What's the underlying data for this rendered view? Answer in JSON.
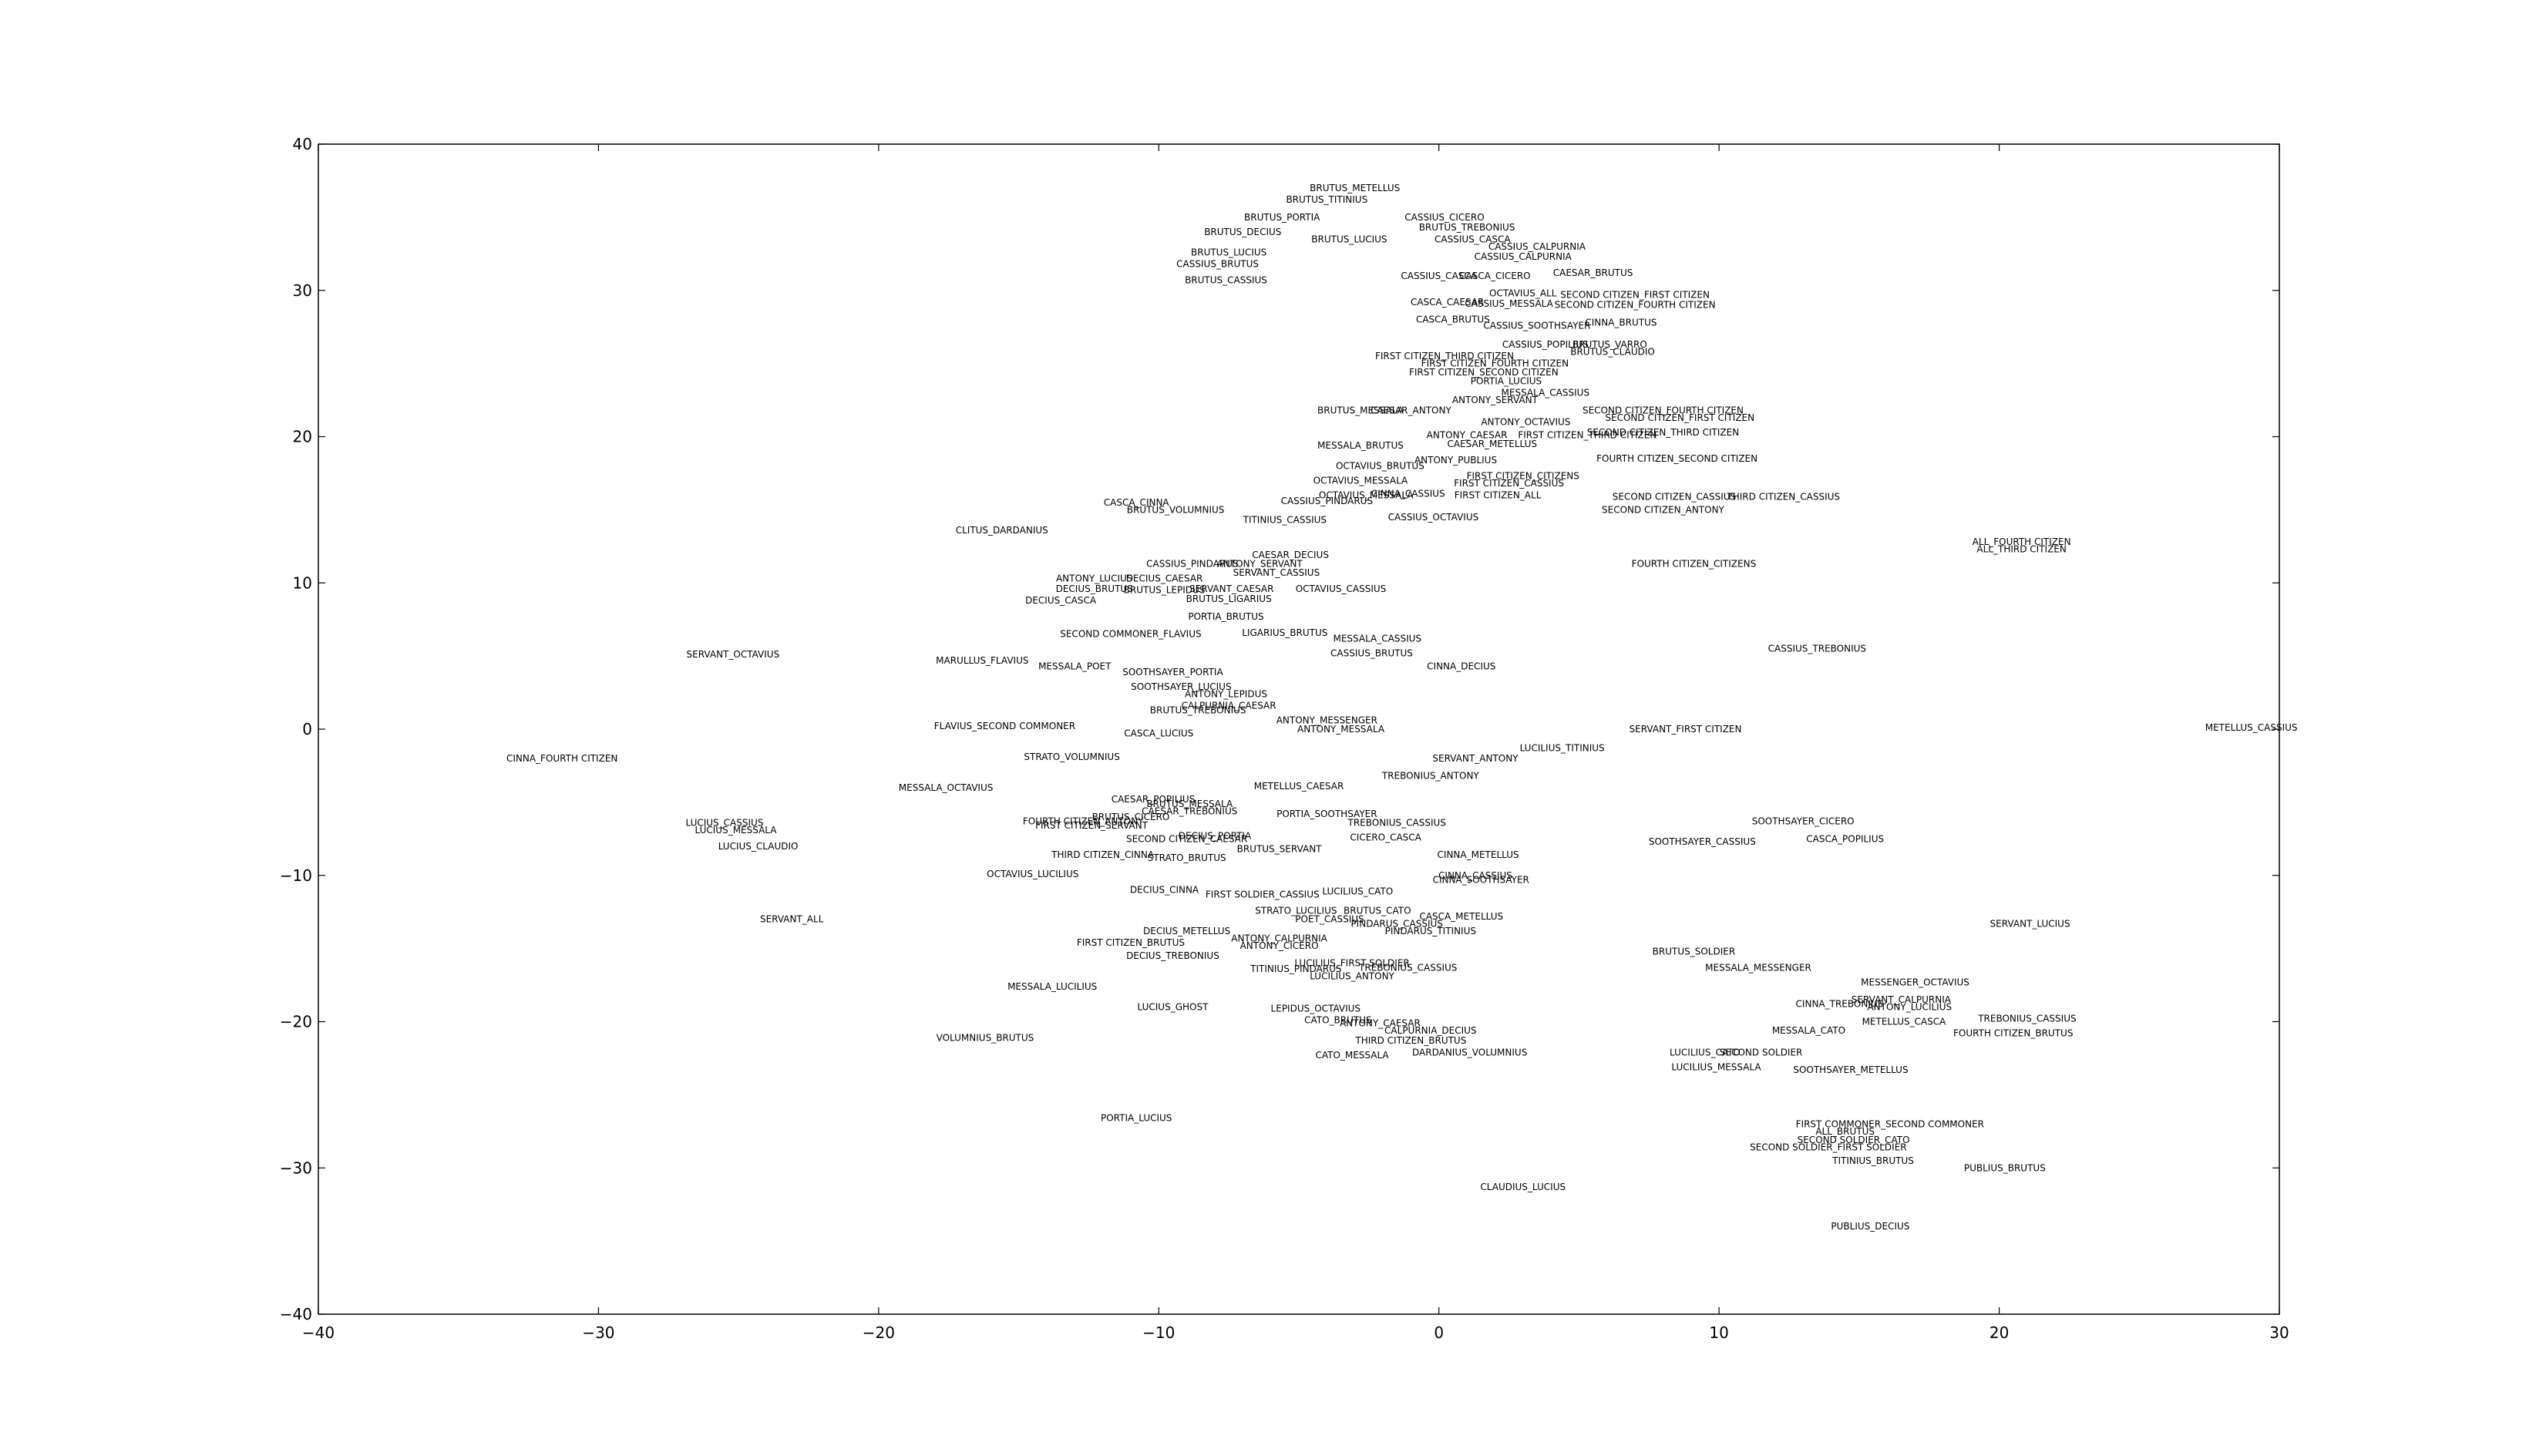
{
  "chart_data": {
    "type": "scatter",
    "title": "",
    "xlabel": "",
    "ylabel": "",
    "xlim": [
      -40,
      30
    ],
    "ylim": [
      -40,
      40
    ],
    "xticks": [
      -40,
      -30,
      -20,
      -10,
      0,
      10,
      20,
      30
    ],
    "yticks": [
      -40,
      -30,
      -20,
      -10,
      0,
      10,
      20,
      30,
      40
    ],
    "xtick_labels": [
      "−40",
      "−30",
      "−20",
      "−10",
      "0",
      "10",
      "20",
      "30"
    ],
    "ytick_labels": [
      "−40",
      "−30",
      "−20",
      "−10",
      "0",
      "10",
      "20",
      "30",
      "40"
    ],
    "grid": false,
    "points": [
      {
        "label": "BRUTUS_METELLUS",
        "x": -3.0,
        "y": 37.0
      },
      {
        "label": "BRUTUS_TITINIUS",
        "x": -4.0,
        "y": 36.2
      },
      {
        "label": "BRUTUS_PORTIA",
        "x": -5.6,
        "y": 35.0
      },
      {
        "label": "BRUTUS_DECIUS",
        "x": -7.0,
        "y": 34.0
      },
      {
        "label": "BRUTUS_LUCIUS",
        "x": -3.2,
        "y": 33.5
      },
      {
        "label": "BRUTUS_TREBONIUS",
        "x": 1.0,
        "y": 34.3
      },
      {
        "label": "CASSIUS_CICERO",
        "x": 0.2,
        "y": 35.0
      },
      {
        "label": "CASSIUS_CASCA",
        "x": 1.2,
        "y": 33.5
      },
      {
        "label": "CASSIUS_CALPURNIA",
        "x": 3.5,
        "y": 33.0
      },
      {
        "label": "BRUTUS_LUCIUS",
        "x": -7.5,
        "y": 32.6
      },
      {
        "label": "CASSIUS_BRUTUS",
        "x": -7.9,
        "y": 31.8
      },
      {
        "label": "CASSIUS_CALPURNIA",
        "x": 3.0,
        "y": 32.3
      },
      {
        "label": "BRUTUS_CASSIUS",
        "x": -7.6,
        "y": 30.7
      },
      {
        "label": "CAESAR_BRUTUS",
        "x": 5.5,
        "y": 31.2
      },
      {
        "label": "CASSIUS_CASCA",
        "x": 0.0,
        "y": 31.0
      },
      {
        "label": "CASCA_CICERO",
        "x": 2.0,
        "y": 31.0
      },
      {
        "label": "OCTAVIUS_ALL",
        "x": 3.0,
        "y": 29.8
      },
      {
        "label": "SECOND CITIZEN_FIRST CITIZEN",
        "x": 7.0,
        "y": 29.7
      },
      {
        "label": "CASCA_CAESAR",
        "x": 0.3,
        "y": 29.2
      },
      {
        "label": "CASSIUS_MESSALA",
        "x": 2.5,
        "y": 29.1
      },
      {
        "label": "SECOND CITIZEN_FOURTH CITIZEN",
        "x": 7.0,
        "y": 29.0
      },
      {
        "label": "CASCA_BRUTUS",
        "x": 0.5,
        "y": 28.0
      },
      {
        "label": "CASSIUS_SOOTHSAYER",
        "x": 3.5,
        "y": 27.6
      },
      {
        "label": "CINNA_BRUTUS",
        "x": 6.5,
        "y": 27.8
      },
      {
        "label": "CASSIUS_POPILIUS",
        "x": 3.8,
        "y": 26.3
      },
      {
        "label": "BRUTUS_VARRO",
        "x": 6.1,
        "y": 26.3
      },
      {
        "label": "FIRST CITIZEN_THIRD CITIZEN",
        "x": 0.2,
        "y": 25.5
      },
      {
        "label": "FIRST CITIZEN_FOURTH CITIZEN",
        "x": 2.0,
        "y": 25.0
      },
      {
        "label": "BRUTUS_CLAUDIO",
        "x": 6.2,
        "y": 25.8
      },
      {
        "label": "FIRST CITIZEN_SECOND CITIZEN",
        "x": 1.6,
        "y": 24.4
      },
      {
        "label": "PORTIA_LUCIUS",
        "x": 2.4,
        "y": 23.8
      },
      {
        "label": "MESSALA_CASSIUS",
        "x": 3.8,
        "y": 23.0
      },
      {
        "label": "ANTONY_SERVANT",
        "x": 2.0,
        "y": 22.5
      },
      {
        "label": "BRUTUS_MESSALA",
        "x": -2.8,
        "y": 21.8
      },
      {
        "label": "CAESAR_ANTONY",
        "x": -1.0,
        "y": 21.8
      },
      {
        "label": "SECOND CITIZEN_FOURTH CITIZEN",
        "x": 8.0,
        "y": 21.8
      },
      {
        "label": "SECOND CITIZEN_FIRST CITIZEN",
        "x": 8.6,
        "y": 21.3
      },
      {
        "label": "ANTONY_OCTAVIUS",
        "x": 3.1,
        "y": 21.0
      },
      {
        "label": "SECOND CITIZEN_THIRD CITIZEN",
        "x": 8.0,
        "y": 20.3
      },
      {
        "label": "ANTONY_CAESAR",
        "x": 1.0,
        "y": 20.1
      },
      {
        "label": "FIRST CITIZEN_THIRD CITIZEN",
        "x": 5.3,
        "y": 20.1
      },
      {
        "label": "MESSALA_BRUTUS",
        "x": -2.8,
        "y": 19.4
      },
      {
        "label": "CAESAR_METELLUS",
        "x": 1.9,
        "y": 19.5
      },
      {
        "label": "ANTONY_PUBLIUS",
        "x": 0.6,
        "y": 18.4
      },
      {
        "label": "FOURTH CITIZEN_SECOND CITIZEN",
        "x": 8.5,
        "y": 18.5
      },
      {
        "label": "OCTAVIUS_BRUTUS",
        "x": -2.1,
        "y": 18.0
      },
      {
        "label": "OCTAVIUS_MESSALA",
        "x": -2.8,
        "y": 17.0
      },
      {
        "label": "FIRST CITIZEN_CITIZENS",
        "x": 3.0,
        "y": 17.3
      },
      {
        "label": "FIRST CITIZEN_CASSIUS",
        "x": 2.5,
        "y": 16.8
      },
      {
        "label": "OCTAVIUS_MESSALA",
        "x": -2.6,
        "y": 16.0
      },
      {
        "label": "CINNA_CASSIUS",
        "x": -1.1,
        "y": 16.1
      },
      {
        "label": "FIRST CITIZEN_ALL",
        "x": 2.1,
        "y": 16.0
      },
      {
        "label": "SECOND CITIZEN_CASSIUS",
        "x": 8.4,
        "y": 15.9
      },
      {
        "label": "THIRD CITIZEN_CASSIUS",
        "x": 12.3,
        "y": 15.9
      },
      {
        "label": "CASCA_CINNA",
        "x": -10.8,
        "y": 15.5
      },
      {
        "label": "CASSIUS_PINDARUS",
        "x": -4.0,
        "y": 15.6
      },
      {
        "label": "BRUTUS_VOLUMNIUS",
        "x": -9.4,
        "y": 15.0
      },
      {
        "label": "SECOND CITIZEN_ANTONY",
        "x": 8.0,
        "y": 15.0
      },
      {
        "label": "TITINIUS_CASSIUS",
        "x": -5.5,
        "y": 14.3
      },
      {
        "label": "CASSIUS_OCTAVIUS",
        "x": -0.2,
        "y": 14.5
      },
      {
        "label": "CLITUS_DARDANIUS",
        "x": -15.6,
        "y": 13.6
      },
      {
        "label": "ALL_FOURTH CITIZEN",
        "x": 20.8,
        "y": 12.8
      },
      {
        "label": "ALL_THIRD CITIZEN",
        "x": 20.8,
        "y": 12.3
      },
      {
        "label": "FOURTH CITIZEN_CITIZENS",
        "x": 9.1,
        "y": 11.3
      },
      {
        "label": "CAESAR_DECIUS",
        "x": -5.3,
        "y": 11.9
      },
      {
        "label": "ANTONY_SERVANT",
        "x": -6.4,
        "y": 11.3
      },
      {
        "label": "CASSIUS_PINDARUS",
        "x": -8.8,
        "y": 11.3
      },
      {
        "label": "SERVANT_CASSIUS",
        "x": -5.8,
        "y": 10.7
      },
      {
        "label": "ANTONY_LUCIUS",
        "x": -12.3,
        "y": 10.3
      },
      {
        "label": "DECIUS_CAESAR",
        "x": -9.8,
        "y": 10.3
      },
      {
        "label": "DECIUS_BRUTUS",
        "x": -12.3,
        "y": 9.6
      },
      {
        "label": "BRUTUS_LEPIDUS",
        "x": -9.8,
        "y": 9.5
      },
      {
        "label": "SERVANT_CAESAR",
        "x": -7.4,
        "y": 9.6
      },
      {
        "label": "OCTAVIUS_CASSIUS",
        "x": -3.5,
        "y": 9.6
      },
      {
        "label": "DECIUS_CASCA",
        "x": -13.5,
        "y": 8.8
      },
      {
        "label": "BRUTUS_LIGARIUS",
        "x": -7.5,
        "y": 8.9
      },
      {
        "label": "PORTIA_BRUTUS",
        "x": -7.6,
        "y": 7.7
      },
      {
        "label": "SECOND COMMONER_FLAVIUS",
        "x": -11.0,
        "y": 6.5
      },
      {
        "label": "LIGARIUS_BRUTUS",
        "x": -5.5,
        "y": 6.6
      },
      {
        "label": "MESSALA_CASSIUS",
        "x": -2.2,
        "y": 6.2
      },
      {
        "label": "CASSIUS_BRUTUS",
        "x": -2.4,
        "y": 5.2
      },
      {
        "label": "SERVANT_OCTAVIUS",
        "x": -25.2,
        "y": 5.1
      },
      {
        "label": "MARULLUS_FLAVIUS",
        "x": -16.3,
        "y": 4.7
      },
      {
        "label": "MESSALA_POET",
        "x": -13.0,
        "y": 4.3
      },
      {
        "label": "CINNA_DECIUS",
        "x": 0.8,
        "y": 4.3
      },
      {
        "label": "CASSIUS_TREBONIUS",
        "x": 13.5,
        "y": 5.5
      },
      {
        "label": "SOOTHSAYER_PORTIA",
        "x": -9.5,
        "y": 3.9
      },
      {
        "label": "SOOTHSAYER_LUCIUS",
        "x": -9.2,
        "y": 2.9
      },
      {
        "label": "ANTONY_LEPIDUS",
        "x": -7.6,
        "y": 2.4
      },
      {
        "label": "CALPURNIA_CAESAR",
        "x": -7.5,
        "y": 1.6
      },
      {
        "label": "BRUTUS_TREBONIUS",
        "x": -8.6,
        "y": 1.3
      },
      {
        "label": "ANTONY_MESSENGER",
        "x": -4.0,
        "y": 0.6
      },
      {
        "label": "ANTONY_MESSALA",
        "x": -3.5,
        "y": 0.0
      },
      {
        "label": "FLAVIUS_SECOND COMMONER",
        "x": -15.5,
        "y": 0.2
      },
      {
        "label": "CASCA_LUCIUS",
        "x": -10.0,
        "y": -0.3
      },
      {
        "label": "SERVANT_FIRST CITIZEN",
        "x": 8.8,
        "y": 0.0
      },
      {
        "label": "METELLUS_CASSIUS",
        "x": 29.0,
        "y": 0.1
      },
      {
        "label": "CINNA_FOURTH CITIZEN",
        "x": -31.3,
        "y": -2.0
      },
      {
        "label": "STRATO_VOLUMNIUS",
        "x": -13.1,
        "y": -1.9
      },
      {
        "label": "LUCILIUS_TITINIUS",
        "x": 4.4,
        "y": -1.3
      },
      {
        "label": "SERVANT_ANTONY",
        "x": 1.3,
        "y": -2.0
      },
      {
        "label": "TREBONIUS_ANTONY",
        "x": -0.3,
        "y": -3.2
      },
      {
        "label": "MESSALA_OCTAVIUS",
        "x": -17.6,
        "y": -4.0
      },
      {
        "label": "METELLUS_CAESAR",
        "x": -5.0,
        "y": -3.9
      },
      {
        "label": "CAESAR_POPILIUS",
        "x": -10.2,
        "y": -4.8
      },
      {
        "label": "BRUTUS_MESSALA",
        "x": -8.9,
        "y": -5.1
      },
      {
        "label": "CAESAR_TREBONIUS",
        "x": -8.9,
        "y": -5.6
      },
      {
        "label": "BRUTUS_CICERO",
        "x": -11.0,
        "y": -6.0
      },
      {
        "label": "FOURTH CITIZEN_ANTONY",
        "x": -12.7,
        "y": -6.3
      },
      {
        "label": "FIRST CITIZEN_SERVANT",
        "x": -12.4,
        "y": -6.6
      },
      {
        "label": "PORTIA_SOOTHSAYER",
        "x": -4.0,
        "y": -5.8
      },
      {
        "label": "TREBONIUS_CASSIUS",
        "x": -1.5,
        "y": -6.4
      },
      {
        "label": "SOOTHSAYER_CICERO",
        "x": 13.0,
        "y": -6.3
      },
      {
        "label": "LUCIUS_CASSIUS",
        "x": -25.5,
        "y": -6.4
      },
      {
        "label": "LUCIUS_MESSALA",
        "x": -25.1,
        "y": -6.9
      },
      {
        "label": "DECIUS_PORTIA",
        "x": -8.0,
        "y": -7.3
      },
      {
        "label": "SECOND CITIZEN_CAESAR",
        "x": -9.0,
        "y": -7.5
      },
      {
        "label": "CICERO_CASCA",
        "x": -1.9,
        "y": -7.4
      },
      {
        "label": "SOOTHSAYER_CASSIUS",
        "x": 9.4,
        "y": -7.7
      },
      {
        "label": "CASCA_POPILIUS",
        "x": 14.5,
        "y": -7.5
      },
      {
        "label": "LUCIUS_CLAUDIO",
        "x": -24.3,
        "y": -8.0
      },
      {
        "label": "BRUTUS_SERVANT",
        "x": -5.7,
        "y": -8.2
      },
      {
        "label": "THIRD CITIZEN_CINNA",
        "x": -12.0,
        "y": -8.6
      },
      {
        "label": "STRATO_BRUTUS",
        "x": -9.0,
        "y": -8.8
      },
      {
        "label": "CINNA_METELLUS",
        "x": 1.4,
        "y": -8.6
      },
      {
        "label": "OCTAVIUS_LUCILIUS",
        "x": -14.5,
        "y": -9.9
      },
      {
        "label": "CINNA_CASSIUS",
        "x": 1.3,
        "y": -10.0
      },
      {
        "label": "CINNA_SOOTHSAYER",
        "x": 1.5,
        "y": -10.3
      },
      {
        "label": "DECIUS_CINNA",
        "x": -9.8,
        "y": -11.0
      },
      {
        "label": "FIRST SOLDIER_CASSIUS",
        "x": -6.3,
        "y": -11.3
      },
      {
        "label": "LUCILIUS_CATO",
        "x": -2.9,
        "y": -11.1
      },
      {
        "label": "STRATO_LUCILIUS",
        "x": -5.1,
        "y": -12.4
      },
      {
        "label": "BRUTUS_CATO",
        "x": -2.2,
        "y": -12.4
      },
      {
        "label": "POET_CASSIUS",
        "x": -3.9,
        "y": -13.0
      },
      {
        "label": "PINDARUS_CASSIUS",
        "x": -1.5,
        "y": -13.3
      },
      {
        "label": "CASCA_METELLUS",
        "x": 0.8,
        "y": -12.8
      },
      {
        "label": "PINDARUS_TITINIUS",
        "x": -0.3,
        "y": -13.8
      },
      {
        "label": "SERVANT_ALL",
        "x": -23.1,
        "y": -13.0
      },
      {
        "label": "SERVANT_LUCIUS",
        "x": 21.1,
        "y": -13.3
      },
      {
        "label": "DECIUS_METELLUS",
        "x": -9.0,
        "y": -13.8
      },
      {
        "label": "ANTONY_CALPURNIA",
        "x": -5.7,
        "y": -14.3
      },
      {
        "label": "FIRST CITIZEN_BRUTUS",
        "x": -11.0,
        "y": -14.6
      },
      {
        "label": "ANTONY_CICERO",
        "x": -5.7,
        "y": -14.8
      },
      {
        "label": "DECIUS_TREBONIUS",
        "x": -9.5,
        "y": -15.5
      },
      {
        "label": "LUCILIUS_FIRST SOLDIER",
        "x": -3.1,
        "y": -16.0
      },
      {
        "label": "TREBONIUS_CASSIUS",
        "x": -1.1,
        "y": -16.3
      },
      {
        "label": "TITINIUS_PINDARUS",
        "x": -5.1,
        "y": -16.4
      },
      {
        "label": "LUCILIUS_ANTONY",
        "x": -3.1,
        "y": -16.9
      },
      {
        "label": "BRUTUS_SOLDIER",
        "x": 9.1,
        "y": -15.2
      },
      {
        "label": "MESSALA_MESSENGER",
        "x": 11.4,
        "y": -16.3
      },
      {
        "label": "MESSALA_LUCILIUS",
        "x": -13.8,
        "y": -17.6
      },
      {
        "label": "MESSENGER_OCTAVIUS",
        "x": 17.0,
        "y": -17.3
      },
      {
        "label": "LUCIUS_GHOST",
        "x": -9.5,
        "y": -19.0
      },
      {
        "label": "LEPIDUS_OCTAVIUS",
        "x": -4.4,
        "y": -19.1
      },
      {
        "label": "CINNA_TREBONIUS",
        "x": 14.3,
        "y": -18.8
      },
      {
        "label": "SERVANT_CALPURNIA",
        "x": 16.5,
        "y": -18.5
      },
      {
        "label": "ANTONY_LUCILIUS",
        "x": 16.8,
        "y": -19.0
      },
      {
        "label": "CATO_BRUTUS",
        "x": -3.6,
        "y": -19.9
      },
      {
        "label": "ANTONY_CAESAR",
        "x": -2.1,
        "y": -20.1
      },
      {
        "label": "METELLUS_CASCA",
        "x": 16.6,
        "y": -20.0
      },
      {
        "label": "TREBONIUS_CASSIUS",
        "x": 21.0,
        "y": -19.8
      },
      {
        "label": "CALPURNIA_DECIUS",
        "x": -0.3,
        "y": -20.6
      },
      {
        "label": "MESSALA_CATO",
        "x": 13.2,
        "y": -20.6
      },
      {
        "label": "FOURTH CITIZEN_BRUTUS",
        "x": 20.5,
        "y": -20.8
      },
      {
        "label": "VOLUMNIUS_BRUTUS",
        "x": -16.2,
        "y": -21.1
      },
      {
        "label": "THIRD CITIZEN_BRUTUS",
        "x": -1.0,
        "y": -21.3
      },
      {
        "label": "CATO_MESSALA",
        "x": -3.1,
        "y": -22.3
      },
      {
        "label": "DARDANIUS_VOLUMNIUS",
        "x": 1.1,
        "y": -22.1
      },
      {
        "label": "LUCILIUS_CATO",
        "x": 9.5,
        "y": -22.1
      },
      {
        "label": "SECOND SOLDIER",
        "x": 11.5,
        "y": -22.1
      },
      {
        "label": "LUCILIUS_MESSALA",
        "x": 9.9,
        "y": -23.1
      },
      {
        "label": "SOOTHSAYER_METELLUS",
        "x": 14.7,
        "y": -23.3
      },
      {
        "label": "PORTIA_LUCIUS",
        "x": -10.8,
        "y": -26.6
      },
      {
        "label": "FIRST COMMONER_SECOND COMMONER",
        "x": 16.1,
        "y": -27.0
      },
      {
        "label": "ALL_BRUTUS",
        "x": 14.5,
        "y": -27.5
      },
      {
        "label": "SECOND SOLDIER_CATO",
        "x": 14.8,
        "y": -28.1
      },
      {
        "label": "SECOND SOLDIER_FIRST SOLDIER",
        "x": 13.9,
        "y": -28.6
      },
      {
        "label": "TITINIUS_BRUTUS",
        "x": 15.5,
        "y": -29.5
      },
      {
        "label": "PUBLIUS_BRUTUS",
        "x": 20.2,
        "y": -30.0
      },
      {
        "label": "CLAUDIUS_LUCIUS",
        "x": 3.0,
        "y": -31.3
      },
      {
        "label": "PUBLIUS_DECIUS",
        "x": 15.4,
        "y": -34.0
      }
    ]
  }
}
